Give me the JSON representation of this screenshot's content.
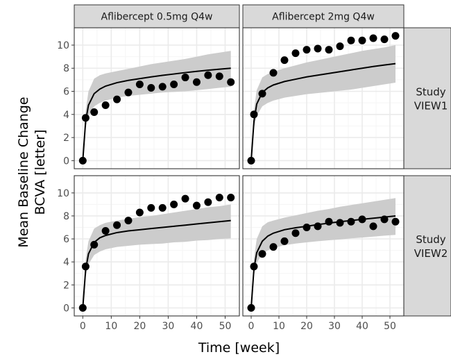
{
  "chart_data": {
    "type": "scatter",
    "xlabel": "Time [week]",
    "ylabel": "Mean Baseline Change\nBCVA [letter]",
    "xlim": [
      -3,
      55
    ],
    "ylim": [
      -0.7,
      11.5
    ],
    "x_ticks": [
      0,
      10,
      20,
      30,
      40,
      50
    ],
    "y_ticks": [
      0,
      2,
      4,
      6,
      8,
      10
    ],
    "grid": true,
    "legend": "none",
    "colors": {
      "strip_bg": "#d9d9d9",
      "ribbon": "#cccccc",
      "line": "#000000",
      "points": "#000000",
      "grid_major": "#ebebeb",
      "grid_minor": "#f5f5f5",
      "border": "#333333",
      "tick_text": "#4d4d4d"
    },
    "col_labels": [
      "Aflibercept 0.5mg Q4w",
      "Aflibercept 2mg Q4w"
    ],
    "row_labels": [
      "Study\nVIEW1",
      "Study\nVIEW2"
    ],
    "panels": [
      {
        "row": 0,
        "col": 0,
        "observed": {
          "x": [
            0,
            1,
            4,
            8,
            12,
            16,
            20,
            24,
            28,
            32,
            36,
            40,
            44,
            48,
            52
          ],
          "y": [
            0,
            3.7,
            4.2,
            4.8,
            5.3,
            5.9,
            6.6,
            6.3,
            6.4,
            6.6,
            7.2,
            6.8,
            7.4,
            7.3,
            6.8
          ]
        },
        "model": {
          "x": [
            0,
            1,
            2,
            4,
            6,
            8,
            12,
            16,
            20,
            24,
            28,
            32,
            36,
            40,
            44,
            48,
            52
          ],
          "median": [
            0,
            3.4,
            4.8,
            5.8,
            6.2,
            6.45,
            6.75,
            6.95,
            7.1,
            7.25,
            7.38,
            7.5,
            7.62,
            7.73,
            7.83,
            7.92,
            8.0
          ],
          "lower": [
            0,
            2.8,
            3.9,
            4.7,
            5.0,
            5.2,
            5.45,
            5.6,
            5.7,
            5.8,
            5.9,
            5.95,
            6.0,
            6.1,
            6.2,
            6.3,
            6.4
          ],
          "upper": [
            0,
            4.3,
            6.0,
            7.1,
            7.4,
            7.55,
            7.75,
            7.95,
            8.15,
            8.35,
            8.5,
            8.65,
            8.8,
            9.0,
            9.2,
            9.35,
            9.5
          ]
        }
      },
      {
        "row": 0,
        "col": 1,
        "observed": {
          "x": [
            0,
            1,
            4,
            8,
            12,
            16,
            20,
            24,
            28,
            32,
            36,
            40,
            44,
            48,
            52
          ],
          "y": [
            0,
            4.0,
            5.8,
            7.6,
            8.7,
            9.3,
            9.6,
            9.7,
            9.6,
            9.9,
            10.4,
            10.4,
            10.6,
            10.5,
            10.8
          ]
        },
        "model": {
          "x": [
            0,
            1,
            2,
            4,
            6,
            8,
            12,
            16,
            20,
            24,
            28,
            32,
            36,
            40,
            44,
            48,
            52
          ],
          "median": [
            0,
            3.4,
            4.9,
            5.9,
            6.3,
            6.55,
            6.85,
            7.05,
            7.25,
            7.4,
            7.55,
            7.7,
            7.85,
            8.0,
            8.15,
            8.28,
            8.4
          ],
          "lower": [
            0,
            2.8,
            3.9,
            4.7,
            5.0,
            5.2,
            5.45,
            5.6,
            5.75,
            5.85,
            5.95,
            6.05,
            6.15,
            6.3,
            6.45,
            6.6,
            6.75
          ],
          "upper": [
            0,
            4.4,
            6.1,
            7.2,
            7.5,
            7.7,
            8.0,
            8.25,
            8.5,
            8.7,
            8.9,
            9.1,
            9.3,
            9.5,
            9.65,
            9.8,
            10.0
          ]
        }
      },
      {
        "row": 1,
        "col": 0,
        "observed": {
          "x": [
            0,
            1,
            4,
            8,
            12,
            16,
            20,
            24,
            28,
            32,
            36,
            40,
            44,
            48,
            52
          ],
          "y": [
            0,
            3.6,
            5.5,
            6.7,
            7.2,
            7.6,
            8.3,
            8.7,
            8.7,
            9.0,
            9.5,
            8.9,
            9.2,
            9.6,
            9.6
          ]
        },
        "model": {
          "x": [
            0,
            1,
            2,
            4,
            6,
            8,
            12,
            16,
            20,
            24,
            28,
            32,
            36,
            40,
            44,
            48,
            52
          ],
          "median": [
            0,
            3.3,
            4.7,
            5.7,
            6.1,
            6.3,
            6.55,
            6.7,
            6.8,
            6.9,
            7.0,
            7.1,
            7.2,
            7.3,
            7.4,
            7.5,
            7.6
          ],
          "lower": [
            0,
            2.7,
            3.8,
            4.6,
            4.9,
            5.1,
            5.3,
            5.4,
            5.5,
            5.55,
            5.6,
            5.7,
            5.75,
            5.85,
            5.9,
            6.0,
            6.05
          ],
          "upper": [
            0,
            4.2,
            5.8,
            6.9,
            7.2,
            7.4,
            7.6,
            7.75,
            7.9,
            8.0,
            8.15,
            8.3,
            8.45,
            8.6,
            8.75,
            8.85,
            9.0
          ]
        }
      },
      {
        "row": 1,
        "col": 1,
        "observed": {
          "x": [
            0,
            1,
            4,
            8,
            12,
            16,
            20,
            24,
            28,
            32,
            36,
            40,
            44,
            48,
            52
          ],
          "y": [
            0,
            3.6,
            4.7,
            5.3,
            5.8,
            6.5,
            7.0,
            7.1,
            7.5,
            7.4,
            7.5,
            7.7,
            7.1,
            7.7,
            7.5
          ]
        },
        "model": {
          "x": [
            0,
            1,
            2,
            4,
            6,
            8,
            12,
            16,
            20,
            24,
            28,
            32,
            36,
            40,
            44,
            48,
            52
          ],
          "median": [
            0,
            3.4,
            4.8,
            5.8,
            6.25,
            6.5,
            6.8,
            6.97,
            7.1,
            7.25,
            7.37,
            7.5,
            7.6,
            7.7,
            7.8,
            7.9,
            8.0
          ],
          "lower": [
            0,
            2.8,
            3.9,
            4.7,
            5.0,
            5.2,
            5.45,
            5.6,
            5.7,
            5.8,
            5.88,
            5.95,
            6.05,
            6.12,
            6.2,
            6.28,
            6.35
          ],
          "upper": [
            0,
            4.3,
            6.0,
            7.1,
            7.45,
            7.6,
            7.85,
            8.05,
            8.25,
            8.45,
            8.6,
            8.8,
            8.95,
            9.1,
            9.25,
            9.4,
            9.55
          ]
        }
      }
    ]
  }
}
